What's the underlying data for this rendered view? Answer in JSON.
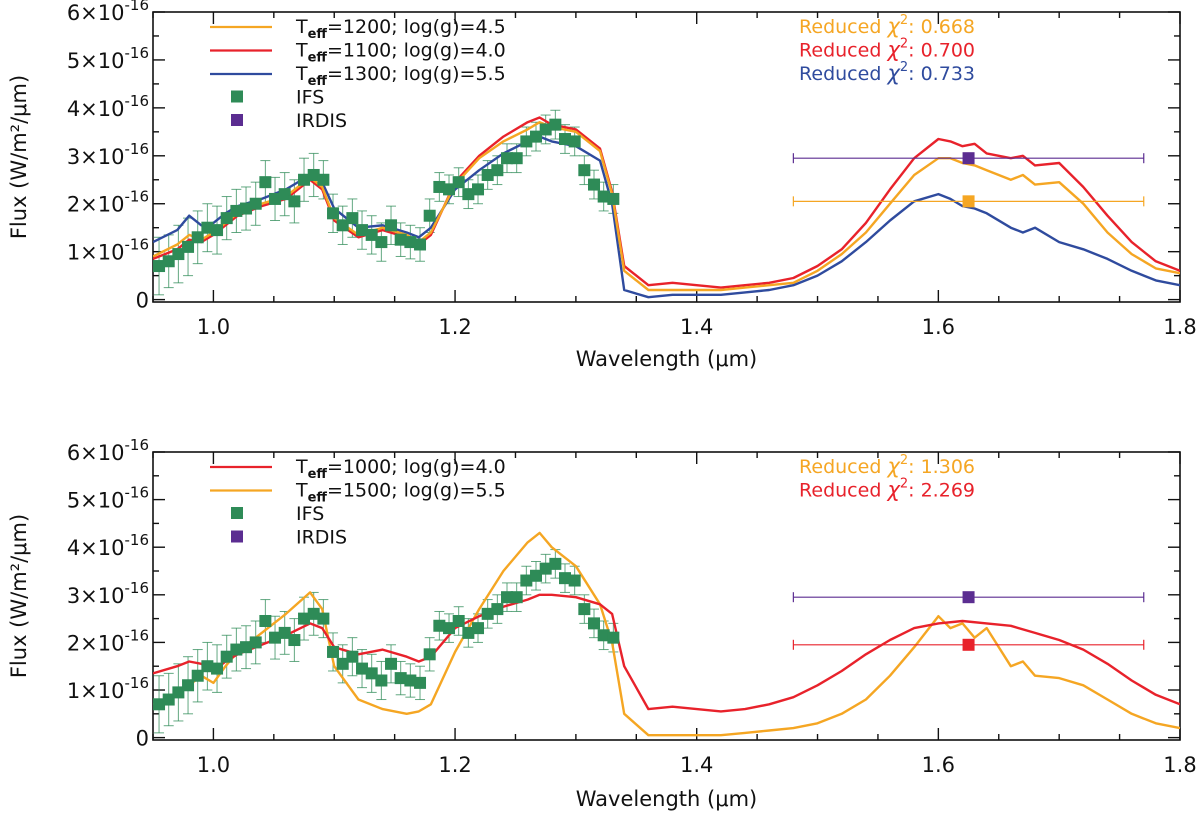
{
  "figure": {
    "panels": 2
  },
  "chart_data": [
    {
      "type": "line",
      "xlabel": "Wavelength (μm)",
      "ylabel": "Flux (W/m²/μm)",
      "xlim": [
        0.95,
        1.8
      ],
      "ylim": [
        -0.05,
        6.0
      ],
      "y_unit_exponent": "-16",
      "xticks": [
        1.0,
        1.2,
        1.4,
        1.6,
        1.8
      ],
      "xtick_labels": [
        "1.0",
        "1.2",
        "1.4",
        "1.6",
        "1.8"
      ],
      "yticks": [
        0,
        1,
        2,
        3,
        4,
        5,
        6
      ],
      "ytick_mantissa": [
        "0",
        "1×10",
        "2×10",
        "3×10",
        "4×10",
        "5×10",
        "6×10"
      ],
      "series": [
        {
          "name": "Teff=1200; log(g)=4.5",
          "legend_teff": "=1200; log(g)=4.5",
          "color": "#f5a623",
          "x": [
            0.95,
            0.97,
            0.98,
            0.99,
            1.0,
            1.01,
            1.02,
            1.04,
            1.06,
            1.08,
            1.09,
            1.1,
            1.12,
            1.14,
            1.16,
            1.17,
            1.18,
            1.2,
            1.22,
            1.24,
            1.26,
            1.27,
            1.28,
            1.3,
            1.32,
            1.33,
            1.34,
            1.36,
            1.38,
            1.4,
            1.42,
            1.44,
            1.46,
            1.48,
            1.5,
            1.52,
            1.54,
            1.56,
            1.58,
            1.6,
            1.61,
            1.62,
            1.63,
            1.64,
            1.66,
            1.67,
            1.68,
            1.7,
            1.72,
            1.74,
            1.76,
            1.78,
            1.8
          ],
          "y": [
            0.9,
            1.15,
            1.35,
            1.25,
            1.4,
            1.6,
            1.8,
            2.0,
            2.15,
            2.55,
            2.35,
            1.7,
            1.35,
            1.5,
            1.35,
            1.2,
            1.4,
            2.4,
            2.95,
            3.3,
            3.55,
            3.7,
            3.6,
            3.5,
            3.1,
            2.2,
            0.6,
            0.2,
            0.2,
            0.2,
            0.2,
            0.25,
            0.3,
            0.35,
            0.6,
            0.95,
            1.4,
            2.0,
            2.6,
            2.95,
            2.95,
            2.85,
            2.8,
            2.7,
            2.5,
            2.6,
            2.4,
            2.45,
            2.0,
            1.4,
            0.95,
            0.65,
            0.55
          ]
        },
        {
          "name": "Teff=1100; log(g)=4.0",
          "legend_teff": "=1100; log(g)=4.0",
          "color": "#e8222b",
          "x": [
            0.95,
            0.97,
            0.98,
            0.99,
            1.0,
            1.01,
            1.02,
            1.04,
            1.06,
            1.08,
            1.09,
            1.1,
            1.12,
            1.14,
            1.16,
            1.17,
            1.18,
            1.2,
            1.22,
            1.24,
            1.26,
            1.27,
            1.28,
            1.3,
            1.32,
            1.33,
            1.34,
            1.36,
            1.38,
            1.4,
            1.42,
            1.44,
            1.46,
            1.48,
            1.5,
            1.52,
            1.54,
            1.56,
            1.58,
            1.6,
            1.61,
            1.62,
            1.63,
            1.64,
            1.66,
            1.67,
            1.68,
            1.7,
            1.72,
            1.74,
            1.76,
            1.78,
            1.8
          ],
          "y": [
            0.85,
            1.05,
            1.25,
            1.2,
            1.35,
            1.55,
            1.75,
            1.95,
            2.1,
            2.5,
            2.3,
            1.65,
            1.3,
            1.45,
            1.3,
            1.15,
            1.35,
            2.45,
            3.0,
            3.4,
            3.7,
            3.8,
            3.65,
            3.55,
            3.15,
            2.25,
            0.7,
            0.3,
            0.35,
            0.3,
            0.25,
            0.3,
            0.35,
            0.45,
            0.7,
            1.05,
            1.6,
            2.3,
            2.95,
            3.35,
            3.3,
            3.2,
            3.25,
            3.05,
            2.95,
            3.0,
            2.8,
            2.85,
            2.35,
            1.75,
            1.2,
            0.8,
            0.6
          ]
        },
        {
          "name": "Teff=1300; log(g)=5.5",
          "legend_teff": "=1300; log(g)=5.5",
          "color": "#2f4b9e",
          "x": [
            0.95,
            0.97,
            0.98,
            0.99,
            1.0,
            1.01,
            1.02,
            1.04,
            1.06,
            1.08,
            1.09,
            1.1,
            1.12,
            1.14,
            1.16,
            1.17,
            1.18,
            1.2,
            1.22,
            1.24,
            1.26,
            1.27,
            1.28,
            1.3,
            1.32,
            1.33,
            1.34,
            1.36,
            1.38,
            1.4,
            1.42,
            1.44,
            1.46,
            1.48,
            1.5,
            1.52,
            1.54,
            1.56,
            1.58,
            1.6,
            1.61,
            1.62,
            1.63,
            1.64,
            1.66,
            1.67,
            1.68,
            1.7,
            1.72,
            1.74,
            1.76,
            1.78,
            1.8
          ],
          "y": [
            1.2,
            1.45,
            1.75,
            1.55,
            1.6,
            1.8,
            1.95,
            2.1,
            2.3,
            2.6,
            2.45,
            1.9,
            1.5,
            1.55,
            1.4,
            1.3,
            1.5,
            2.3,
            2.7,
            3.05,
            3.3,
            3.4,
            3.3,
            3.2,
            2.9,
            2.0,
            0.2,
            0.05,
            0.1,
            0.1,
            0.1,
            0.15,
            0.2,
            0.3,
            0.5,
            0.8,
            1.2,
            1.65,
            2.05,
            2.2,
            2.1,
            1.95,
            1.9,
            1.8,
            1.5,
            1.4,
            1.5,
            1.2,
            1.05,
            0.85,
            0.6,
            0.4,
            0.3
          ]
        }
      ],
      "ifs": {
        "name": "IFS",
        "color": "#2e8b57",
        "x": [
          0.955,
          0.963,
          0.971,
          0.979,
          0.987,
          0.995,
          1.003,
          1.011,
          1.019,
          1.027,
          1.035,
          1.043,
          1.051,
          1.059,
          1.067,
          1.075,
          1.083,
          1.091,
          1.099,
          1.107,
          1.115,
          1.123,
          1.131,
          1.139,
          1.147,
          1.155,
          1.163,
          1.171,
          1.179,
          1.187,
          1.195,
          1.203,
          1.211,
          1.219,
          1.227,
          1.235,
          1.243,
          1.251,
          1.259,
          1.267,
          1.275,
          1.283,
          1.291,
          1.299,
          1.307,
          1.315,
          1.323,
          1.331
        ],
        "y": [
          0.7,
          0.8,
          0.95,
          1.1,
          1.3,
          1.5,
          1.45,
          1.7,
          1.85,
          1.9,
          2.0,
          2.45,
          2.1,
          2.2,
          2.05,
          2.5,
          2.6,
          2.5,
          1.8,
          1.55,
          1.7,
          1.45,
          1.35,
          1.2,
          1.55,
          1.25,
          1.2,
          1.15,
          1.75,
          2.35,
          2.3,
          2.45,
          2.2,
          2.3,
          2.6,
          2.7,
          2.95,
          2.95,
          3.3,
          3.4,
          3.55,
          3.65,
          3.35,
          3.3,
          2.7,
          2.4,
          2.15,
          2.1
        ],
        "err": [
          0.6,
          0.55,
          0.6,
          0.6,
          0.55,
          0.5,
          0.5,
          0.45,
          0.45,
          0.45,
          0.45,
          0.45,
          0.45,
          0.45,
          0.45,
          0.45,
          0.45,
          0.4,
          0.4,
          0.4,
          0.4,
          0.4,
          0.4,
          0.4,
          0.4,
          0.35,
          0.35,
          0.35,
          0.35,
          0.3,
          0.3,
          0.3,
          0.3,
          0.3,
          0.3,
          0.3,
          0.3,
          0.3,
          0.3,
          0.3,
          0.3,
          0.3,
          0.3,
          0.3,
          0.3,
          0.3,
          0.3,
          0.3
        ]
      },
      "irdis": {
        "name": "IRDIS",
        "color": "#5b2d91",
        "points": [
          {
            "x": 1.625,
            "y": 2.95,
            "xerr": [
              1.48,
              1.77
            ],
            "color": "#5b2d91"
          },
          {
            "x": 1.625,
            "y": 2.05,
            "xerr": [
              1.48,
              1.77
            ],
            "color": "#f5a623"
          }
        ]
      },
      "chi2": [
        {
          "label": "Reduced",
          "sym": "χ",
          "value": "0.668",
          "color": "#f5a623"
        },
        {
          "label": "Reduced",
          "sym": "χ",
          "value": "0.700",
          "color": "#e8222b"
        },
        {
          "label": "Reduced",
          "sym": "χ",
          "value": "0.733",
          "color": "#2f4b9e"
        }
      ]
    },
    {
      "type": "line",
      "xlabel": "Wavelength (μm)",
      "ylabel": "Flux (W/m²/μm)",
      "xlim": [
        0.95,
        1.8
      ],
      "ylim": [
        -0.05,
        6.0
      ],
      "y_unit_exponent": "-16",
      "xticks": [
        1.0,
        1.2,
        1.4,
        1.6,
        1.8
      ],
      "xtick_labels": [
        "1.0",
        "1.2",
        "1.4",
        "1.6",
        "1.8"
      ],
      "yticks": [
        0,
        1,
        2,
        3,
        4,
        5,
        6
      ],
      "ytick_mantissa": [
        "0",
        "1×10",
        "2×10",
        "3×10",
        "4×10",
        "5×10",
        "6×10"
      ],
      "series": [
        {
          "name": "Teff=1000; log(g)=4.0",
          "legend_teff": "=1000; log(g)=4.0",
          "color": "#e8222b",
          "x": [
            0.95,
            0.97,
            0.98,
            0.99,
            1.0,
            1.01,
            1.02,
            1.04,
            1.06,
            1.08,
            1.09,
            1.1,
            1.12,
            1.14,
            1.16,
            1.17,
            1.18,
            1.2,
            1.22,
            1.24,
            1.26,
            1.27,
            1.28,
            1.3,
            1.32,
            1.33,
            1.34,
            1.36,
            1.38,
            1.4,
            1.42,
            1.44,
            1.46,
            1.48,
            1.5,
            1.52,
            1.54,
            1.56,
            1.58,
            1.6,
            1.62,
            1.64,
            1.66,
            1.68,
            1.7,
            1.72,
            1.74,
            1.76,
            1.78,
            1.8
          ],
          "y": [
            1.35,
            1.5,
            1.6,
            1.55,
            1.4,
            1.6,
            1.75,
            1.95,
            2.15,
            2.4,
            2.3,
            1.9,
            1.75,
            1.85,
            1.7,
            1.6,
            1.7,
            2.3,
            2.55,
            2.75,
            2.9,
            3.0,
            3.0,
            2.95,
            2.8,
            2.6,
            1.5,
            0.6,
            0.65,
            0.6,
            0.55,
            0.6,
            0.7,
            0.85,
            1.1,
            1.4,
            1.75,
            2.05,
            2.3,
            2.4,
            2.45,
            2.4,
            2.35,
            2.2,
            2.05,
            1.85,
            1.55,
            1.2,
            0.9,
            0.7
          ]
        },
        {
          "name": "Teff=1500; log(g)=5.5",
          "legend_teff": "=1500; log(g)=5.5",
          "color": "#f5a623",
          "x": [
            0.95,
            0.97,
            0.98,
            0.99,
            1.0,
            1.01,
            1.02,
            1.04,
            1.06,
            1.08,
            1.09,
            1.1,
            1.12,
            1.14,
            1.16,
            1.17,
            1.18,
            1.2,
            1.22,
            1.24,
            1.26,
            1.27,
            1.28,
            1.3,
            1.32,
            1.33,
            1.34,
            1.36,
            1.38,
            1.4,
            1.42,
            1.44,
            1.46,
            1.48,
            1.5,
            1.52,
            1.54,
            1.56,
            1.58,
            1.6,
            1.61,
            1.62,
            1.63,
            1.64,
            1.66,
            1.67,
            1.68,
            1.7,
            1.72,
            1.74,
            1.76,
            1.78,
            1.8
          ],
          "y": [
            0.7,
            0.9,
            1.1,
            1.3,
            1.15,
            1.5,
            1.8,
            2.2,
            2.6,
            3.05,
            2.7,
            1.5,
            0.8,
            0.6,
            0.5,
            0.55,
            0.7,
            1.8,
            2.7,
            3.5,
            4.1,
            4.3,
            4.0,
            3.6,
            2.8,
            2.0,
            0.5,
            0.05,
            0.05,
            0.05,
            0.05,
            0.1,
            0.15,
            0.2,
            0.3,
            0.5,
            0.8,
            1.3,
            1.9,
            2.55,
            2.3,
            2.4,
            2.1,
            2.3,
            1.5,
            1.6,
            1.3,
            1.25,
            1.1,
            0.8,
            0.5,
            0.3,
            0.2
          ]
        }
      ],
      "ifs": {
        "name": "IFS",
        "color": "#2e8b57",
        "x": [
          0.955,
          0.963,
          0.971,
          0.979,
          0.987,
          0.995,
          1.003,
          1.011,
          1.019,
          1.027,
          1.035,
          1.043,
          1.051,
          1.059,
          1.067,
          1.075,
          1.083,
          1.091,
          1.099,
          1.107,
          1.115,
          1.123,
          1.131,
          1.139,
          1.147,
          1.155,
          1.163,
          1.171,
          1.179,
          1.187,
          1.195,
          1.203,
          1.211,
          1.219,
          1.227,
          1.235,
          1.243,
          1.251,
          1.259,
          1.267,
          1.275,
          1.283,
          1.291,
          1.299,
          1.307,
          1.315,
          1.323,
          1.331
        ],
        "y": [
          0.7,
          0.8,
          0.95,
          1.1,
          1.3,
          1.5,
          1.45,
          1.7,
          1.85,
          1.9,
          2.0,
          2.45,
          2.1,
          2.2,
          2.05,
          2.5,
          2.6,
          2.5,
          1.8,
          1.55,
          1.7,
          1.45,
          1.35,
          1.2,
          1.55,
          1.25,
          1.2,
          1.15,
          1.75,
          2.35,
          2.3,
          2.45,
          2.2,
          2.3,
          2.6,
          2.7,
          2.95,
          2.95,
          3.3,
          3.4,
          3.55,
          3.65,
          3.35,
          3.3,
          2.7,
          2.4,
          2.15,
          2.1
        ],
        "err": [
          0.6,
          0.55,
          0.6,
          0.6,
          0.55,
          0.5,
          0.5,
          0.45,
          0.45,
          0.45,
          0.45,
          0.45,
          0.45,
          0.45,
          0.45,
          0.45,
          0.45,
          0.4,
          0.4,
          0.4,
          0.4,
          0.4,
          0.4,
          0.4,
          0.4,
          0.35,
          0.35,
          0.35,
          0.35,
          0.3,
          0.3,
          0.3,
          0.3,
          0.3,
          0.3,
          0.3,
          0.3,
          0.3,
          0.3,
          0.3,
          0.3,
          0.3,
          0.3,
          0.3,
          0.3,
          0.3,
          0.3,
          0.3
        ]
      },
      "irdis": {
        "name": "IRDIS",
        "color": "#5b2d91",
        "points": [
          {
            "x": 1.625,
            "y": 2.95,
            "xerr": [
              1.48,
              1.77
            ],
            "color": "#5b2d91"
          },
          {
            "x": 1.625,
            "y": 1.95,
            "xerr": [
              1.48,
              1.77
            ],
            "color": "#e8222b"
          }
        ]
      },
      "chi2": [
        {
          "label": "Reduced",
          "sym": "χ",
          "value": "1.306",
          "color": "#f5a623"
        },
        {
          "label": "Reduced",
          "sym": "χ",
          "value": "2.269",
          "color": "#e8222b"
        }
      ]
    }
  ]
}
